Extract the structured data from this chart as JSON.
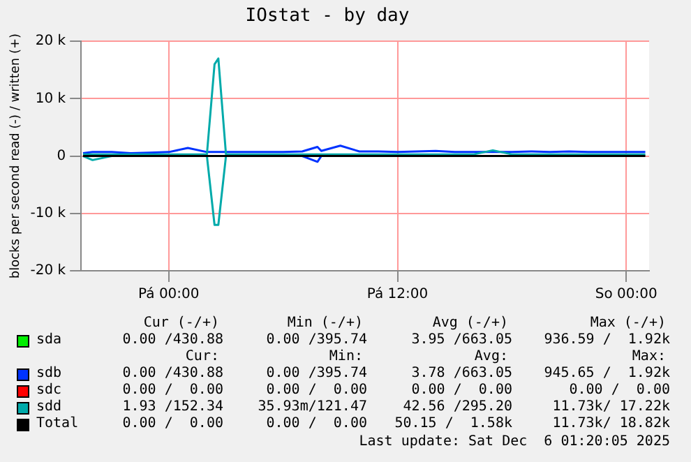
{
  "chart_data": {
    "type": "line",
    "title": "IOstat - by day",
    "ylabel": "blocks per second read (-) / written (+)",
    "x": [
      "2025-12-04T19:30",
      "2025-12-04T20:00",
      "2025-12-04T21:00",
      "2025-12-04T22:00",
      "2025-12-04T23:00",
      "2025-12-05T00:00",
      "2025-12-05T01:00",
      "2025-12-05T02:00",
      "2025-12-05T02:24",
      "2025-12-05T02:36",
      "2025-12-05T03:00",
      "2025-12-05T04:00",
      "2025-12-05T05:00",
      "2025-12-05T06:00",
      "2025-12-05T07:00",
      "2025-12-05T07:48",
      "2025-12-05T08:00",
      "2025-12-05T09:00",
      "2025-12-05T10:00",
      "2025-12-05T11:00",
      "2025-12-05T12:00",
      "2025-12-05T13:00",
      "2025-12-05T14:00",
      "2025-12-05T15:00",
      "2025-12-05T16:00",
      "2025-12-05T17:00",
      "2025-12-05T18:00",
      "2025-12-05T19:00",
      "2025-12-05T20:00",
      "2025-12-05T21:00",
      "2025-12-05T22:00",
      "2025-12-05T23:00",
      "2025-12-06T00:00",
      "2025-12-06T01:00"
    ],
    "xlim": [
      "2025-12-04T19:24",
      "2025-12-06T01:12"
    ],
    "xticks": [
      {
        "value": "2025-12-05T00:00",
        "label": "Pá 00:00"
      },
      {
        "value": "2025-12-05T12:00",
        "label": "Pá 12:00"
      },
      {
        "value": "2025-12-06T00:00",
        "label": "So 00:00"
      }
    ],
    "ylim": [
      -20000,
      20000
    ],
    "yticks": [
      {
        "value": -20000,
        "label": "-20 k"
      },
      {
        "value": -10000,
        "label": "-10 k"
      },
      0,
      {
        "value": 10000,
        "label": "10 k"
      },
      {
        "value": 20000,
        "label": "20 k"
      }
    ],
    "grid": true,
    "legend": "bottom",
    "marker": "none",
    "line_style": "solid",
    "series": [
      {
        "name": "sda",
        "color": "#00ee00",
        "values": [
          null,
          null,
          null,
          null,
          null,
          null,
          null,
          null,
          null,
          null,
          null,
          null,
          null,
          null,
          null,
          null,
          null,
          null,
          null,
          null,
          null,
          null,
          null,
          null,
          null,
          null,
          null,
          null,
          null,
          null,
          null,
          null,
          null,
          null
        ]
      },
      {
        "name": "sdb",
        "color": "#0033ff",
        "values": [
          500,
          700,
          700,
          500,
          600,
          700,
          1400,
          700,
          700,
          700,
          700,
          700,
          700,
          700,
          800,
          1600,
          900,
          1800,
          800,
          800,
          700,
          800,
          900,
          700,
          700,
          700,
          700,
          800,
          700,
          800,
          700,
          700,
          700,
          700
        ]
      },
      {
        "color": "#0033ff",
        "values": [
          null,
          null,
          null,
          null,
          null,
          null,
          null,
          null,
          null,
          null,
          null,
          null,
          null,
          null,
          0,
          -1000,
          0,
          null,
          null,
          null,
          null,
          null,
          null,
          null,
          null,
          null,
          null,
          null,
          null,
          null,
          null,
          null,
          null,
          null
        ]
      },
      {
        "name": "sdc",
        "color": "#ff0000",
        "values": [
          null,
          null,
          null,
          null,
          null,
          null,
          null,
          null,
          null,
          null,
          null,
          null,
          null,
          null,
          null,
          null,
          null,
          null,
          null,
          null,
          null,
          null,
          null,
          null,
          null,
          null,
          null,
          null,
          null,
          null,
          null,
          null,
          null,
          null
        ]
      },
      {
        "name": "sdd",
        "color": "#00aaaa",
        "values": [
          300,
          300,
          300,
          300,
          300,
          300,
          300,
          300,
          16000,
          17000,
          300,
          300,
          300,
          300,
          300,
          300,
          300,
          300,
          300,
          300,
          300,
          300,
          300,
          300,
          300,
          1000,
          300,
          300,
          300,
          300,
          300,
          300,
          300,
          300
        ]
      },
      {
        "color": "#00aaaa",
        "values": [
          0,
          -700,
          0,
          null,
          null,
          null,
          null,
          0,
          -12000,
          -12000,
          0,
          null,
          null,
          null,
          null,
          null,
          null,
          null,
          null,
          null,
          null,
          null,
          null,
          null,
          null,
          null,
          null,
          null,
          null,
          null,
          null,
          null,
          null,
          null
        ]
      },
      {
        "name": "Total",
        "color": "#000000",
        "values": [
          0,
          0,
          0,
          0,
          0,
          0,
          0,
          0,
          0,
          0,
          0,
          0,
          0,
          0,
          0,
          0,
          0,
          0,
          0,
          0,
          0,
          0,
          0,
          0,
          0,
          0,
          0,
          0,
          0,
          0,
          0,
          0,
          0,
          0
        ]
      }
    ],
    "annotations": [
      "Cur (-/+)",
      "Min (-/+)",
      "Avg (-/+)",
      "Max (-/+)",
      "0.00 /430.88",
      "0.00 /395.74",
      "3.95 /663.05",
      "936.59 /  1.92k",
      "Cur:",
      "Min:",
      "Avg:",
      "Max:",
      "0.00 /430.88",
      "0.00 /395.74",
      "3.78 /663.05",
      "945.65 /  1.92k",
      "0.00 /  0.00",
      "0.00 /  0.00",
      "0.00 /  0.00",
      "0.00 /  0.00",
      "1.93 /152.34",
      "35.93m/121.47",
      "42.56 /295.20",
      "11.73k/ 17.22k",
      "0.00 /  0.00",
      "0.00 /  0.00",
      "50.15 /  1.58k",
      "11.73k/ 18.82k",
      "Last update: Sat Dec  6 01:20:05 2025"
    ]
  }
}
